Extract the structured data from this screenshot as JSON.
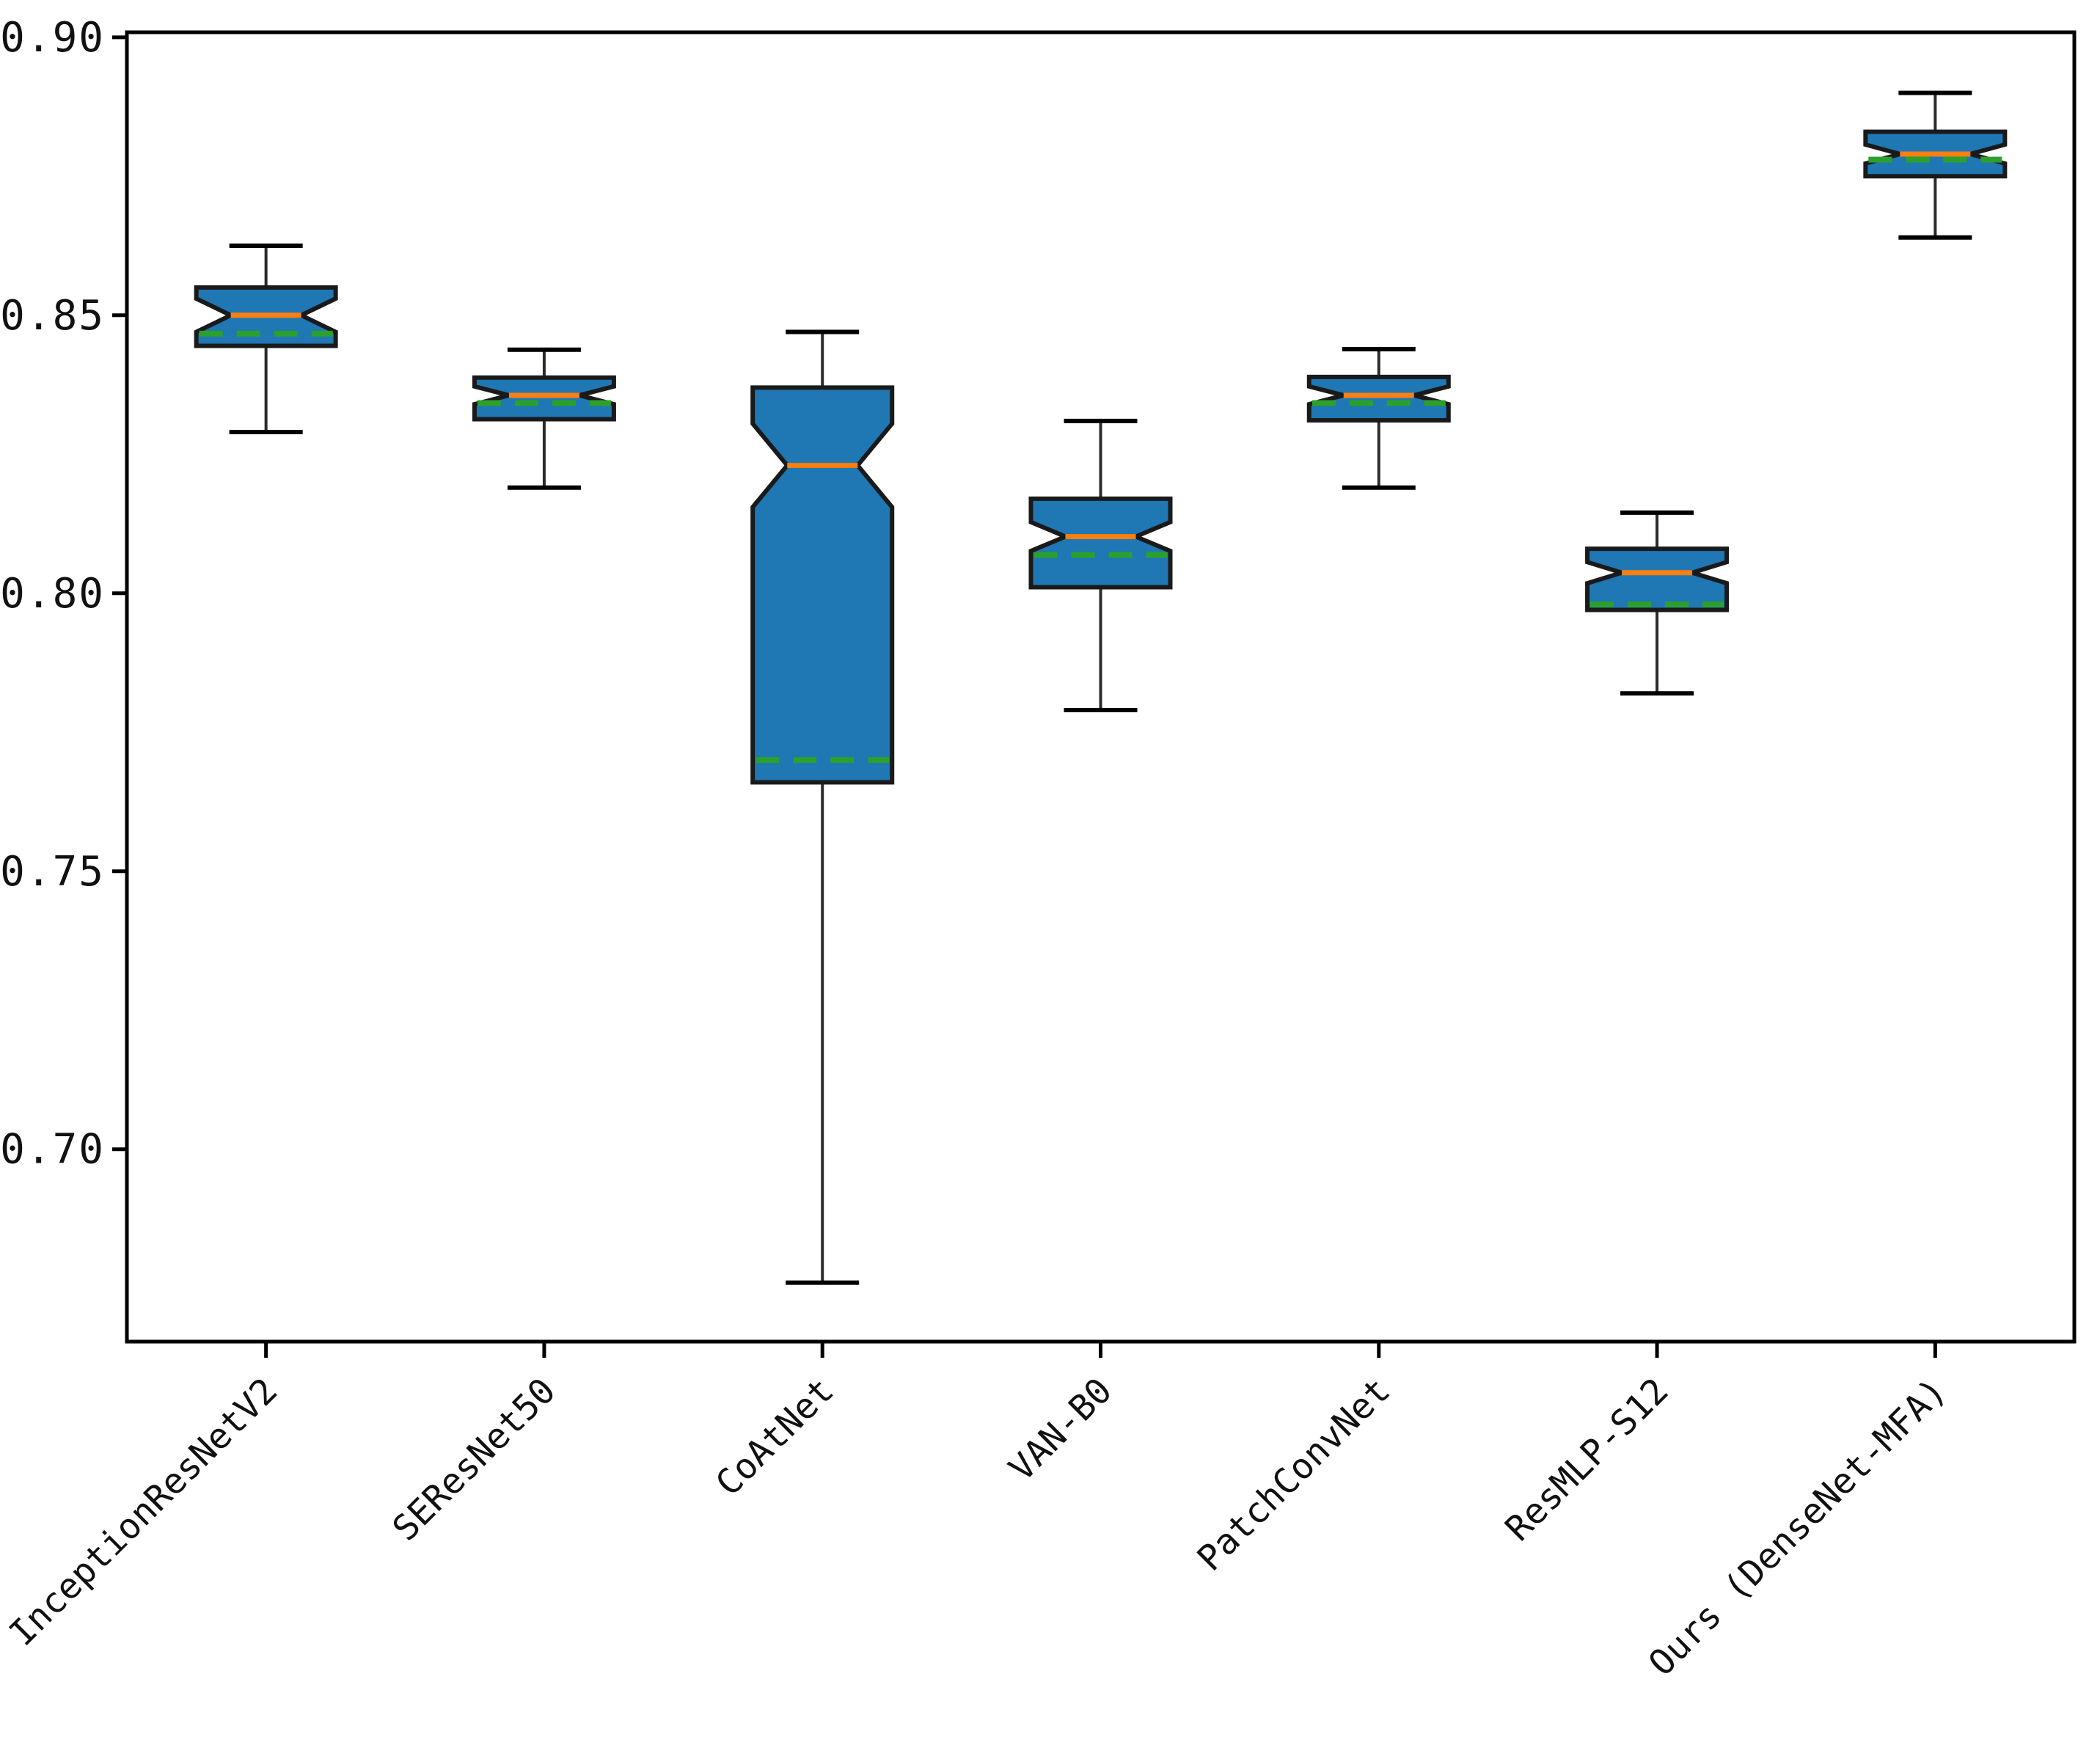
{
  "figure": {
    "kind": "notched-boxplot-figure",
    "background": "#ffffff"
  },
  "y_axis": {
    "tick_labels": [
      "0.90",
      "0.85",
      "0.80",
      "0.75",
      "0.70"
    ],
    "tick_values": [
      0.9,
      0.85,
      0.8,
      0.75,
      0.7
    ],
    "ylim": [
      0.6654,
      0.9009
    ]
  },
  "x_axis": {
    "tick_label_rotation_deg": 45
  },
  "colors": {
    "box_fill": "#1f77b4",
    "box_edge": "#1a1a1a",
    "median_line": "#ff7f0e",
    "mean_line": "#2ca02c",
    "whisker": "#2b2b2b",
    "spine": "#000000"
  },
  "chart_data": {
    "type": "boxplot",
    "notched": true,
    "grid": false,
    "legend": null,
    "title": "",
    "xlabel": "",
    "ylabel": "",
    "ylim": [
      0.6654,
      0.9009
    ],
    "yticks": [
      0.9,
      0.85,
      0.8,
      0.75,
      0.7
    ],
    "categories": [
      "InceptionResNetV2",
      "SEResNet50",
      "CoAtNet",
      "VAN-B0",
      "PatchConvNet",
      "ResMLP-S12",
      "Ours (DenseNet-MFA)"
    ],
    "series": [
      {
        "label": "InceptionResNetV2",
        "whislo": 0.829,
        "q1": 0.8445,
        "med": 0.85,
        "q3": 0.855,
        "whishi": 0.8625,
        "mean": 0.8467,
        "notch_lo": 0.847,
        "notch_hi": 0.853
      },
      {
        "label": "SEResNet50",
        "whislo": 0.819,
        "q1": 0.8313,
        "med": 0.8356,
        "q3": 0.8388,
        "whishi": 0.8438,
        "mean": 0.8342,
        "notch_lo": 0.834,
        "notch_hi": 0.8372
      },
      {
        "label": "CoAtNet",
        "whislo": 0.676,
        "q1": 0.766,
        "med": 0.823,
        "q3": 0.837,
        "whishi": 0.847,
        "mean": 0.77,
        "notch_lo": 0.8155,
        "notch_hi": 0.8305
      },
      {
        "label": "VAN-B0",
        "whislo": 0.779,
        "q1": 0.8011,
        "med": 0.8102,
        "q3": 0.817,
        "whishi": 0.831,
        "mean": 0.8069,
        "notch_lo": 0.8076,
        "notch_hi": 0.8128
      },
      {
        "label": "PatchConvNet",
        "whislo": 0.819,
        "q1": 0.8311,
        "med": 0.8356,
        "q3": 0.8389,
        "whishi": 0.8439,
        "mean": 0.8342,
        "notch_lo": 0.834,
        "notch_hi": 0.8372
      },
      {
        "label": "ResMLP-S12",
        "whislo": 0.782,
        "q1": 0.797,
        "med": 0.8037,
        "q3": 0.808,
        "whishi": 0.8145,
        "mean": 0.798,
        "notch_lo": 0.8018,
        "notch_hi": 0.8056
      },
      {
        "label": "Ours (DenseNet-MFA)",
        "whislo": 0.864,
        "q1": 0.875,
        "med": 0.879,
        "q3": 0.883,
        "whishi": 0.89,
        "mean": 0.878,
        "notch_lo": 0.8773,
        "notch_hi": 0.8807
      }
    ]
  }
}
